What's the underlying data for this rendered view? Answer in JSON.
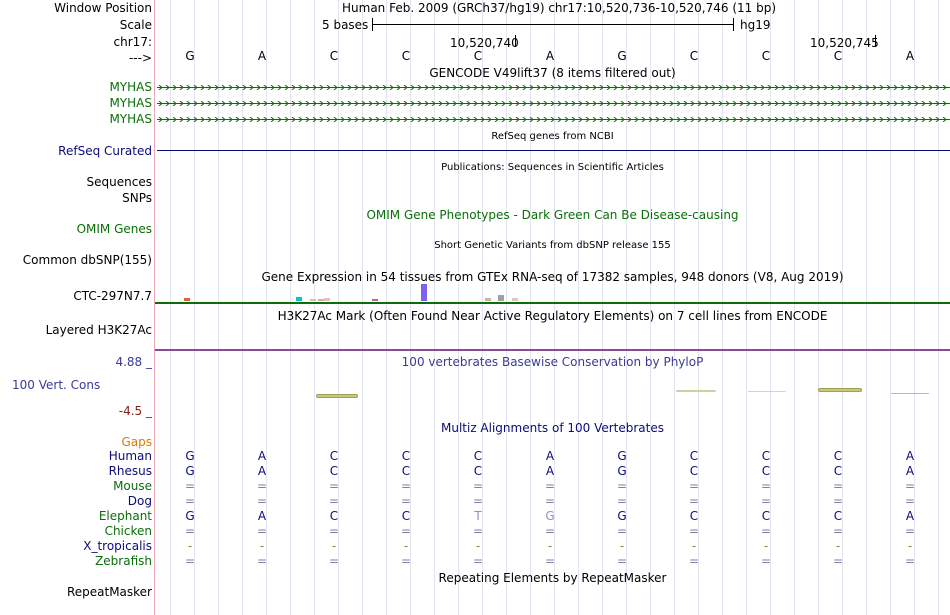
{
  "labels": {
    "window_position": "Window Position",
    "scale": "Scale",
    "chrom": "chr17:",
    "strand": "--->"
  },
  "header": {
    "assembly_position": "Human Feb. 2009 (GRCh37/hg19)   chr17:10,520,736-10,520,746 (11 bp)",
    "scale_bases": "5 bases",
    "scale_db": "hg19",
    "coord_1": "10,520,740",
    "coord_2": "10,520,745"
  },
  "sequence": [
    "G",
    "A",
    "C",
    "C",
    "C",
    "A",
    "G",
    "C",
    "C",
    "C",
    "A"
  ],
  "tracks": {
    "gencode": {
      "title": "GENCODE V49lift37 (8 items filtered out)",
      "genes": [
        "MYHAS",
        "MYHAS",
        "MYHAS"
      ],
      "color": "#0a6e0a"
    },
    "refseq": {
      "title": "RefSeq genes from NCBI",
      "label": "RefSeq Curated",
      "color": "#0c0c78"
    },
    "publications": {
      "title": "Publications: Sequences in Scientific Articles",
      "label_1": "Sequences",
      "label_2": "SNPs"
    },
    "omim": {
      "title": "OMIM Gene Phenotypes - Dark Green Can Be Disease-causing",
      "label": "OMIM Genes",
      "color": "#0a6e0a"
    },
    "dbsnp": {
      "title": "Short Genetic Variants from dbSNP release 155",
      "label": "Common dbSNP(155)"
    },
    "gtex": {
      "title": "Gene Expression in 54 tissues from GTEx RNA-seq of 17382 samples, 948 donors (V8, Aug 2019)",
      "label": "CTC-297N7.7"
    },
    "h3k27ac": {
      "title": "H3K27Ac Mark (Often Found Near Active Regulatory Elements) on 7 cell lines from ENCODE",
      "label": "Layered H3K27Ac"
    },
    "phylop": {
      "title": "100 vertebrates Basewise Conservation by PhyloP",
      "label": "100 Vert. Cons",
      "max": "4.88 _",
      "min": "-4.5 _",
      "color": "#3a3a96"
    },
    "multiz": {
      "title": "Multiz Alignments of 100 Vertebrates",
      "gaps_label": "Gaps",
      "species": [
        {
          "name": "Human",
          "bases": [
            "G",
            "A",
            "C",
            "C",
            "C",
            "A",
            "G",
            "C",
            "C",
            "C",
            "A"
          ]
        },
        {
          "name": "Rhesus",
          "bases": [
            "G",
            "A",
            "C",
            "C",
            "C",
            "A",
            "G",
            "C",
            "C",
            "C",
            "A"
          ]
        },
        {
          "name": "Mouse",
          "bases": [
            "=",
            "=",
            "=",
            "=",
            "=",
            "=",
            "=",
            "=",
            "=",
            "=",
            "="
          ]
        },
        {
          "name": "Dog",
          "bases": [
            "=",
            "=",
            "=",
            "=",
            "=",
            "=",
            "=",
            "=",
            "=",
            "=",
            "="
          ]
        },
        {
          "name": "Elephant",
          "bases": [
            "G",
            "A",
            "C",
            "C",
            "T",
            "G",
            "G",
            "C",
            "C",
            "C",
            "A"
          ]
        },
        {
          "name": "Chicken",
          "bases": [
            "=",
            "=",
            "=",
            "=",
            "=",
            "=",
            "=",
            "=",
            "=",
            "=",
            "="
          ]
        },
        {
          "name": "X_tropicalis",
          "bases": [
            "-",
            "-",
            "-",
            "-",
            "-",
            "-",
            "-",
            "-",
            "-",
            "-",
            "-"
          ]
        },
        {
          "name": "Zebrafish",
          "bases": [
            "=",
            "=",
            "=",
            "=",
            "=",
            "=",
            "=",
            "=",
            "=",
            "=",
            "="
          ]
        }
      ]
    },
    "repeatmasker": {
      "title": "Repeating Elements by RepeatMasker",
      "label": "RepeatMasker"
    }
  },
  "colors": {
    "navy": "#0c0c78",
    "green": "#0a6e0a",
    "orange": "#d08000",
    "maroon": "#8b1a1a",
    "purple_line": "#8a4a9a"
  }
}
